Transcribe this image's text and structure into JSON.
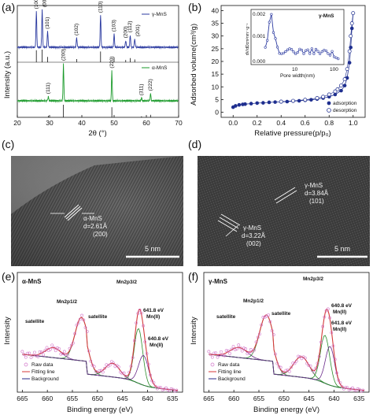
{
  "panels": {
    "a": {
      "label": "(a)",
      "ylabel": "Intensity (a.u.)",
      "xlabel": "2θ (°)",
      "xticks": [
        "20",
        "30",
        "40",
        "50",
        "60",
        "70"
      ],
      "gamma_legend": "γ-MnS",
      "alpha_legend": "α-MnS",
      "gamma_peaks": [
        "(100)",
        "(002)",
        "(101)",
        "(102)",
        "(110)",
        "(103)",
        "(200)",
        "(112)",
        "(201)"
      ],
      "alpha_peaks": [
        "(111)",
        "(200)",
        "(220)",
        "(311)",
        "(222)"
      ]
    },
    "b": {
      "label": "(b)",
      "ylabel": "Adsorbed volume(cm³/g)",
      "xlabel": "Relative pressure(p/p₀)",
      "xticks": [
        "0.0",
        "0.2",
        "0.4",
        "0.6",
        "0.8",
        "1.0"
      ],
      "yticks": [
        "0",
        "5",
        "10",
        "15",
        "20",
        "25",
        "30",
        "35",
        "40"
      ],
      "inset_title": "γ-MnS",
      "inset_ylabel": "dV/dDcm³nm⁻¹g⁻¹",
      "inset_xlabel": "Pore width(nm)",
      "inset_yticks": [
        "0.000",
        "0.001",
        "0.002"
      ],
      "inset_xticks": [
        "10",
        "100"
      ],
      "legend_adsorption": "adsorption",
      "legend_desorption": "desorption"
    },
    "c": {
      "label": "(c)",
      "annotation_phase": "α-MnS",
      "annotation_d": "d=2.61Å",
      "annotation_plane": "(200)",
      "scale": "5 nm"
    },
    "d": {
      "label": "(d)",
      "ann1_phase": "γ-MnS",
      "ann1_d": "d=3.84Å",
      "ann1_plane": "(101)",
      "ann2_phase": "γ-MnS",
      "ann2_d": "d=3.22Å",
      "ann2_plane": "(002)",
      "scale": "5 nm"
    },
    "e": {
      "label": "(e)",
      "title": "α-MnS",
      "ylabel": "Intensity",
      "xlabel": "Binding energy (eV)",
      "xticks": [
        "665",
        "660",
        "655",
        "650",
        "645",
        "640",
        "635"
      ],
      "peak_mn2p12": "Mn2p1/2",
      "peak_mn2p32": "Mn2p3/2",
      "sat1": "satellite",
      "sat2": "satellite",
      "ann_6418": "641.8 eV",
      "ann_6418_state": "Mn(II)",
      "ann_6408": "640.8 eV",
      "ann_6408_state": "Mn(II)",
      "legend": [
        "Raw data",
        "Fitting line",
        "Background"
      ]
    },
    "f": {
      "label": "(f)",
      "title": "γ-MnS",
      "ylabel": "Intensity",
      "xlabel": "Binding energy (eV)",
      "xticks": [
        "665",
        "660",
        "655",
        "650",
        "645",
        "640",
        "635"
      ],
      "peak_mn2p12": "Mn2p1/2",
      "peak_mn2p32": "Mn2p3/2",
      "sat1": "satellite",
      "sat2": "satellite",
      "ann_6408": "640.8 eV",
      "ann_6408_state": "Mn(II)",
      "ann_6418": "641.8 eV",
      "ann_6418_state": "Mn(II)",
      "legend": [
        "Raw data",
        "Fitting line",
        "Background"
      ]
    }
  },
  "colors": {
    "gamma": "#2b3aa0",
    "alpha": "#1a9a2a",
    "adsorption": "#1f2f8f",
    "fit": "#d43a3a",
    "raw": "#d070c8",
    "background_line": "#2a2a8a",
    "comp_green": "#2b8c2b",
    "comp_purple": "#6a2a8a"
  },
  "chart_data": [
    {
      "panel": "a",
      "type": "line",
      "xlabel": "2θ (°)",
      "ylabel": "Intensity (a.u.)",
      "xlim": [
        20,
        70
      ],
      "series": [
        {
          "name": "γ-MnS",
          "peaks_2theta": [
            25.9,
            27.7,
            29.4,
            38.4,
            45.8,
            50.0,
            53.6,
            55.0,
            56.4
          ],
          "peak_heights": [
            0.95,
            1.0,
            0.42,
            0.25,
            0.85,
            0.35,
            0.18,
            0.33,
            0.22
          ],
          "hkl": [
            "(100)",
            "(002)",
            "(101)",
            "(102)",
            "(110)",
            "(103)",
            "(200)",
            "(112)",
            "(201)"
          ]
        },
        {
          "name": "α-MnS",
          "peaks_2theta": [
            29.6,
            34.3,
            49.3,
            58.5,
            61.3
          ],
          "peak_heights": [
            0.12,
            1.0,
            0.8,
            0.08,
            0.2
          ],
          "hkl": [
            "(111)",
            "(200)",
            "(220)",
            "(311)",
            "(222)"
          ]
        }
      ]
    },
    {
      "panel": "b",
      "type": "line",
      "xlabel": "Relative pressure(p/p₀)",
      "ylabel": "Adsorbed volume(cm³/g)",
      "xlim": [
        0.0,
        1.0
      ],
      "ylim": [
        0,
        40
      ],
      "series": [
        {
          "name": "adsorption",
          "x": [
            0.0,
            0.02,
            0.05,
            0.08,
            0.1,
            0.15,
            0.2,
            0.25,
            0.3,
            0.35,
            0.4,
            0.45,
            0.5,
            0.55,
            0.6,
            0.65,
            0.7,
            0.75,
            0.8,
            0.85,
            0.9,
            0.93,
            0.95,
            0.97,
            0.98,
            0.99,
            1.0
          ],
          "y": [
            2.0,
            2.5,
            2.9,
            3.1,
            3.2,
            3.4,
            3.6,
            3.7,
            3.9,
            4.0,
            4.1,
            4.2,
            4.4,
            4.5,
            4.7,
            4.9,
            5.2,
            5.6,
            6.1,
            7.0,
            8.5,
            10.5,
            13.5,
            19.5,
            25.5,
            33.0,
            39.0
          ]
        },
        {
          "name": "desorption",
          "x": [
            1.0,
            0.99,
            0.98,
            0.97,
            0.95,
            0.93,
            0.9,
            0.87,
            0.85,
            0.8,
            0.75,
            0.7,
            0.6,
            0.5,
            0.4
          ],
          "y": [
            39.0,
            35.0,
            30.0,
            24.0,
            17.0,
            13.0,
            10.5,
            9.0,
            8.2,
            7.0,
            6.1,
            5.6,
            4.9,
            4.5,
            4.2
          ]
        }
      ],
      "inset": {
        "title": "γ-MnS",
        "xlabel": "Pore width(nm)",
        "ylabel": "dV/dDcm³nm⁻¹g⁻¹",
        "xscale": "log",
        "ylim": [
          0.0,
          0.002
        ]
      }
    },
    {
      "panel": "e",
      "type": "line",
      "title": "α-MnS",
      "xlabel": "Binding energy (eV)",
      "ylabel": "Intensity",
      "xlim": [
        665,
        635
      ],
      "peaks_eV": [
        653.2,
        647.5,
        641.8,
        640.8
      ],
      "peak_labels": [
        "Mn2p1/2",
        "satellite",
        "Mn(II) 641.8 eV",
        "Mn(II) 640.8 eV"
      ],
      "series": [
        {
          "name": "Raw data"
        },
        {
          "name": "Fitting line"
        },
        {
          "name": "Background"
        }
      ]
    },
    {
      "panel": "f",
      "type": "line",
      "title": "γ-MnS",
      "xlabel": "Binding energy (eV)",
      "ylabel": "Intensity",
      "xlim": [
        665,
        635
      ],
      "peaks_eV": [
        653.5,
        646.5,
        641.8,
        640.8
      ],
      "peak_labels": [
        "Mn2p1/2",
        "satellite",
        "Mn(II) 641.8 eV",
        "Mn(II) 640.8 eV"
      ],
      "series": [
        {
          "name": "Raw data"
        },
        {
          "name": "Fitting line"
        },
        {
          "name": "Background"
        }
      ]
    }
  ]
}
